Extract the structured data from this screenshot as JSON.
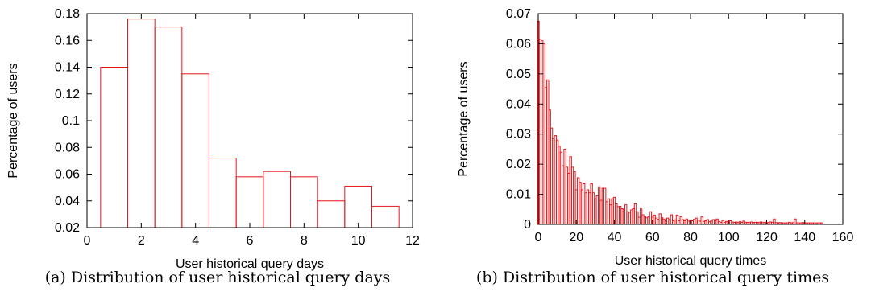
{
  "chart_data": [
    {
      "type": "bar",
      "caption": "(a) Distribution of user historical query days",
      "xlabel": "User historical query days",
      "ylabel": "Percentage of users",
      "xlim": [
        0,
        12
      ],
      "ylim": [
        0.02,
        0.18
      ],
      "xticks": [
        0,
        2,
        4,
        6,
        8,
        10,
        12
      ],
      "yticks": [
        0.02,
        0.04,
        0.06,
        0.08,
        0.1,
        0.12,
        0.14,
        0.16,
        0.18
      ],
      "ytick_labels": [
        "0.02",
        "0.04",
        "0.06",
        "0.08",
        "0.1",
        "0.12",
        "0.14",
        "0.16",
        "0.18"
      ],
      "bin_width": 1,
      "x": [
        1,
        2,
        3,
        4,
        5,
        6,
        7,
        8,
        9,
        10,
        11
      ],
      "values": [
        0.14,
        0.176,
        0.17,
        0.135,
        0.072,
        0.058,
        0.062,
        0.058,
        0.04,
        0.051,
        0.036
      ],
      "bar_color": "#e8161b",
      "grid": false
    },
    {
      "type": "bar",
      "caption": "(b) Distribution of user historical query times",
      "xlabel": "User historical query times",
      "ylabel": "Percentage of users",
      "xlim": [
        0,
        160
      ],
      "ylim": [
        0,
        0.07
      ],
      "xticks": [
        0,
        20,
        40,
        60,
        80,
        100,
        120,
        140,
        160
      ],
      "yticks": [
        0,
        0.01,
        0.02,
        0.03,
        0.04,
        0.05,
        0.06,
        0.07
      ],
      "ytick_labels": [
        "0",
        "0.01",
        "0.02",
        "0.03",
        "0.04",
        "0.05",
        "0.06",
        "0.07"
      ],
      "bin_width": 1,
      "x": [
        0,
        1,
        2,
        3,
        4,
        5,
        6,
        7,
        8,
        9,
        10,
        11,
        12,
        13,
        14,
        15,
        16,
        17,
        18,
        19,
        20,
        21,
        22,
        23,
        24,
        25,
        26,
        27,
        28,
        29,
        30,
        31,
        32,
        33,
        34,
        35,
        36,
        37,
        38,
        39,
        40,
        41,
        42,
        43,
        44,
        45,
        46,
        47,
        48,
        49,
        50,
        51,
        52,
        53,
        54,
        55,
        56,
        57,
        58,
        59,
        60,
        61,
        62,
        63,
        64,
        65,
        66,
        67,
        68,
        69,
        70,
        71,
        72,
        73,
        74,
        75,
        76,
        77,
        78,
        79,
        80,
        81,
        82,
        83,
        84,
        85,
        86,
        87,
        88,
        89,
        90,
        91,
        92,
        93,
        94,
        95,
        96,
        97,
        98,
        99,
        100,
        101,
        102,
        103,
        104,
        105,
        106,
        107,
        108,
        109,
        110,
        111,
        112,
        113,
        114,
        115,
        116,
        117,
        118,
        119,
        120,
        121,
        122,
        123,
        124,
        125,
        126,
        127,
        128,
        129,
        130,
        131,
        132,
        133,
        134,
        135,
        136,
        137,
        138,
        139,
        140,
        141,
        142,
        143,
        144,
        145,
        146,
        147,
        148,
        149
      ],
      "values": [
        0.0675,
        0.0615,
        0.061,
        0.06,
        0.0455,
        0.048,
        0.038,
        0.032,
        0.0285,
        0.0295,
        0.028,
        0.026,
        0.024,
        0.0195,
        0.025,
        0.019,
        0.017,
        0.0225,
        0.019,
        0.0175,
        0.0115,
        0.0155,
        0.014,
        0.0115,
        0.0135,
        0.0105,
        0.0115,
        0.0105,
        0.0135,
        0.0105,
        0.0085,
        0.0095,
        0.0125,
        0.008,
        0.012,
        0.012,
        0.0075,
        0.0085,
        0.0065,
        0.0085,
        0.009,
        0.0068,
        0.0059,
        0.006,
        0.0052,
        0.005,
        0.0065,
        0.0042,
        0.004,
        0.0048,
        0.0052,
        0.0068,
        0.0042,
        0.0024,
        0.0055,
        0.0032,
        0.0026,
        0.0022,
        0.0025,
        0.0042,
        0.0024,
        0.0031,
        0.0021,
        0.0017,
        0.0035,
        0.0022,
        0.0018,
        0.0012,
        0.0021,
        0.0016,
        0.0032,
        0.0012,
        0.0015,
        0.0031,
        0.0012,
        0.0026,
        0.0016,
        0.0012,
        0.0018,
        0.0011,
        0.0015,
        0.0012,
        0.0017,
        0.0021,
        0.0014,
        0.0011,
        0.0025,
        0.001,
        0.0012,
        0.0016,
        0.0009,
        0.0011,
        0.0016,
        0.0012,
        0.0018,
        0.0009,
        0.0007,
        0.0013,
        0.0007,
        0.001,
        0.0006,
        0.0012,
        0.0008,
        0.0007,
        0.0008,
        0.0006,
        0.0009,
        0.0007,
        0.0011,
        0.0006,
        0.0007,
        0.0006,
        0.0008,
        0.0006,
        0.0007,
        0.0007,
        0.0006,
        0.0008,
        0.0006,
        0.0007,
        0.0006,
        0.0006,
        0.0008,
        0.0007,
        0.0018,
        0.0006,
        0.0005,
        0.0006,
        0.0005,
        0.0005,
        0.0005,
        0.0005,
        0.0007,
        0.0005,
        0.0006,
        0.0018,
        0.0005,
        0.0005,
        0.0005,
        0.0006,
        0.0005,
        0.0005,
        0.0005,
        0.0005,
        0.0005,
        0.0005,
        0.0005,
        0.0005,
        0.0005,
        0.0005
      ],
      "bar_color": "#e8161b",
      "grid": false
    }
  ]
}
